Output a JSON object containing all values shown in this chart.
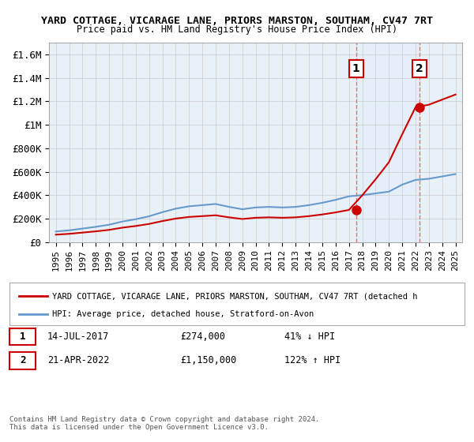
{
  "title1": "YARD COTTAGE, VICARAGE LANE, PRIORS MARSTON, SOUTHAM, CV47 7RT",
  "title2": "Price paid vs. HM Land Registry's House Price Index (HPI)",
  "ylabel_ticks": [
    "£0",
    "£200K",
    "£400K",
    "£600K",
    "£800K",
    "£1M",
    "£1.2M",
    "£1.4M",
    "£1.6M"
  ],
  "ylabel_values": [
    0,
    200000,
    400000,
    600000,
    800000,
    1000000,
    1200000,
    1400000,
    1600000
  ],
  "ylim": [
    0,
    1700000
  ],
  "xlim_start": 1995,
  "xlim_end": 2026,
  "xtick_years": [
    1995,
    1996,
    1997,
    1998,
    1999,
    2000,
    2001,
    2002,
    2003,
    2004,
    2005,
    2006,
    2007,
    2008,
    2009,
    2010,
    2011,
    2012,
    2013,
    2014,
    2015,
    2016,
    2017,
    2018,
    2019,
    2020,
    2021,
    2022,
    2023,
    2024,
    2025
  ],
  "transaction1_date": 2017.535,
  "transaction1_price": 274000,
  "transaction1_label": "1",
  "transaction2_date": 2022.3,
  "transaction2_price": 1150000,
  "transaction2_label": "2",
  "red_line_color": "#cc0000",
  "blue_line_color": "#6699cc",
  "shaded_color": "#ddeeff",
  "vline_color": "#ff6666",
  "dot_color": "#cc0000",
  "legend1_text": "YARD COTTAGE, VICARAGE LANE, PRIORS MARSTON, SOUTHAM, CV47 7RT (detached h",
  "legend2_text": "HPI: Average price, detached house, Stratford-on-Avon",
  "table_row1": [
    "1",
    "14-JUL-2017",
    "£274,000",
    "41% ↓ HPI"
  ],
  "table_row2": [
    "2",
    "21-APR-2022",
    "£1,150,000",
    "122% ↑ HPI"
  ],
  "footer": "Contains HM Land Registry data © Crown copyright and database right 2024.\nThis data is licensed under the Open Government Licence v3.0.",
  "background_color": "#ffffff",
  "grid_color": "#cccccc"
}
